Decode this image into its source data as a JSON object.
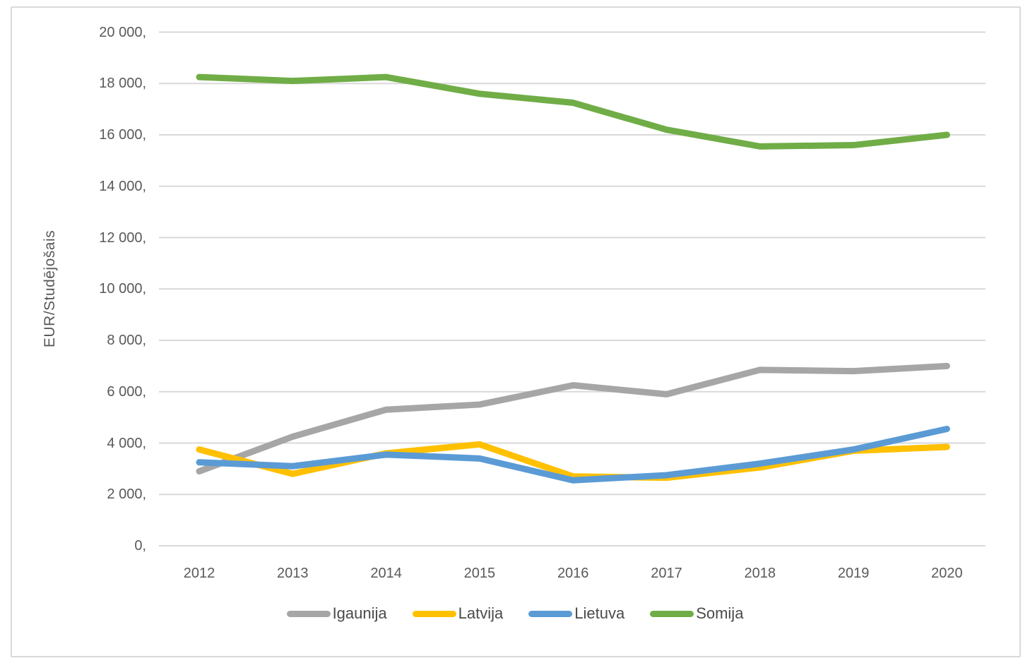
{
  "chart_data": {
    "type": "line",
    "title": "",
    "xlabel": "",
    "ylabel": "EUR/Studējošais",
    "categories": [
      "2012",
      "2013",
      "2014",
      "2015",
      "2016",
      "2017",
      "2018",
      "2019",
      "2020"
    ],
    "series": [
      {
        "name": "Igaunija",
        "color": "#a6a6a6",
        "values": [
          2900,
          4250,
          5300,
          5500,
          6250,
          5900,
          6850,
          6800,
          7000
        ]
      },
      {
        "name": "Latvija",
        "color": "#ffc000",
        "values": [
          3750,
          2800,
          3600,
          3950,
          2700,
          2650,
          3050,
          3700,
          3850
        ]
      },
      {
        "name": "Lietuva",
        "color": "#5b9bd5",
        "values": [
          3250,
          3100,
          3550,
          3400,
          2550,
          2750,
          3200,
          3750,
          4550
        ]
      },
      {
        "name": "Somija",
        "color": "#70ad47",
        "values": [
          18250,
          18100,
          18250,
          17600,
          17250,
          16200,
          15550,
          15600,
          16000
        ]
      }
    ],
    "y_axis": {
      "min": 0,
      "max": 20000,
      "step": 2000,
      "tick_labels": [
        "0,",
        "2 000,",
        "4 000,",
        "6 000,",
        "8 000,",
        "10 000,",
        "12 000,",
        "14 000,",
        "16 000,",
        "18 000,",
        "20 000,"
      ]
    },
    "grid": "horizontal",
    "legend_position": "bottom"
  },
  "colors": {
    "gridline": "#d9d9d9",
    "axis_text": "#595959",
    "frame_border": "#d9d9d9",
    "background": "#ffffff"
  }
}
